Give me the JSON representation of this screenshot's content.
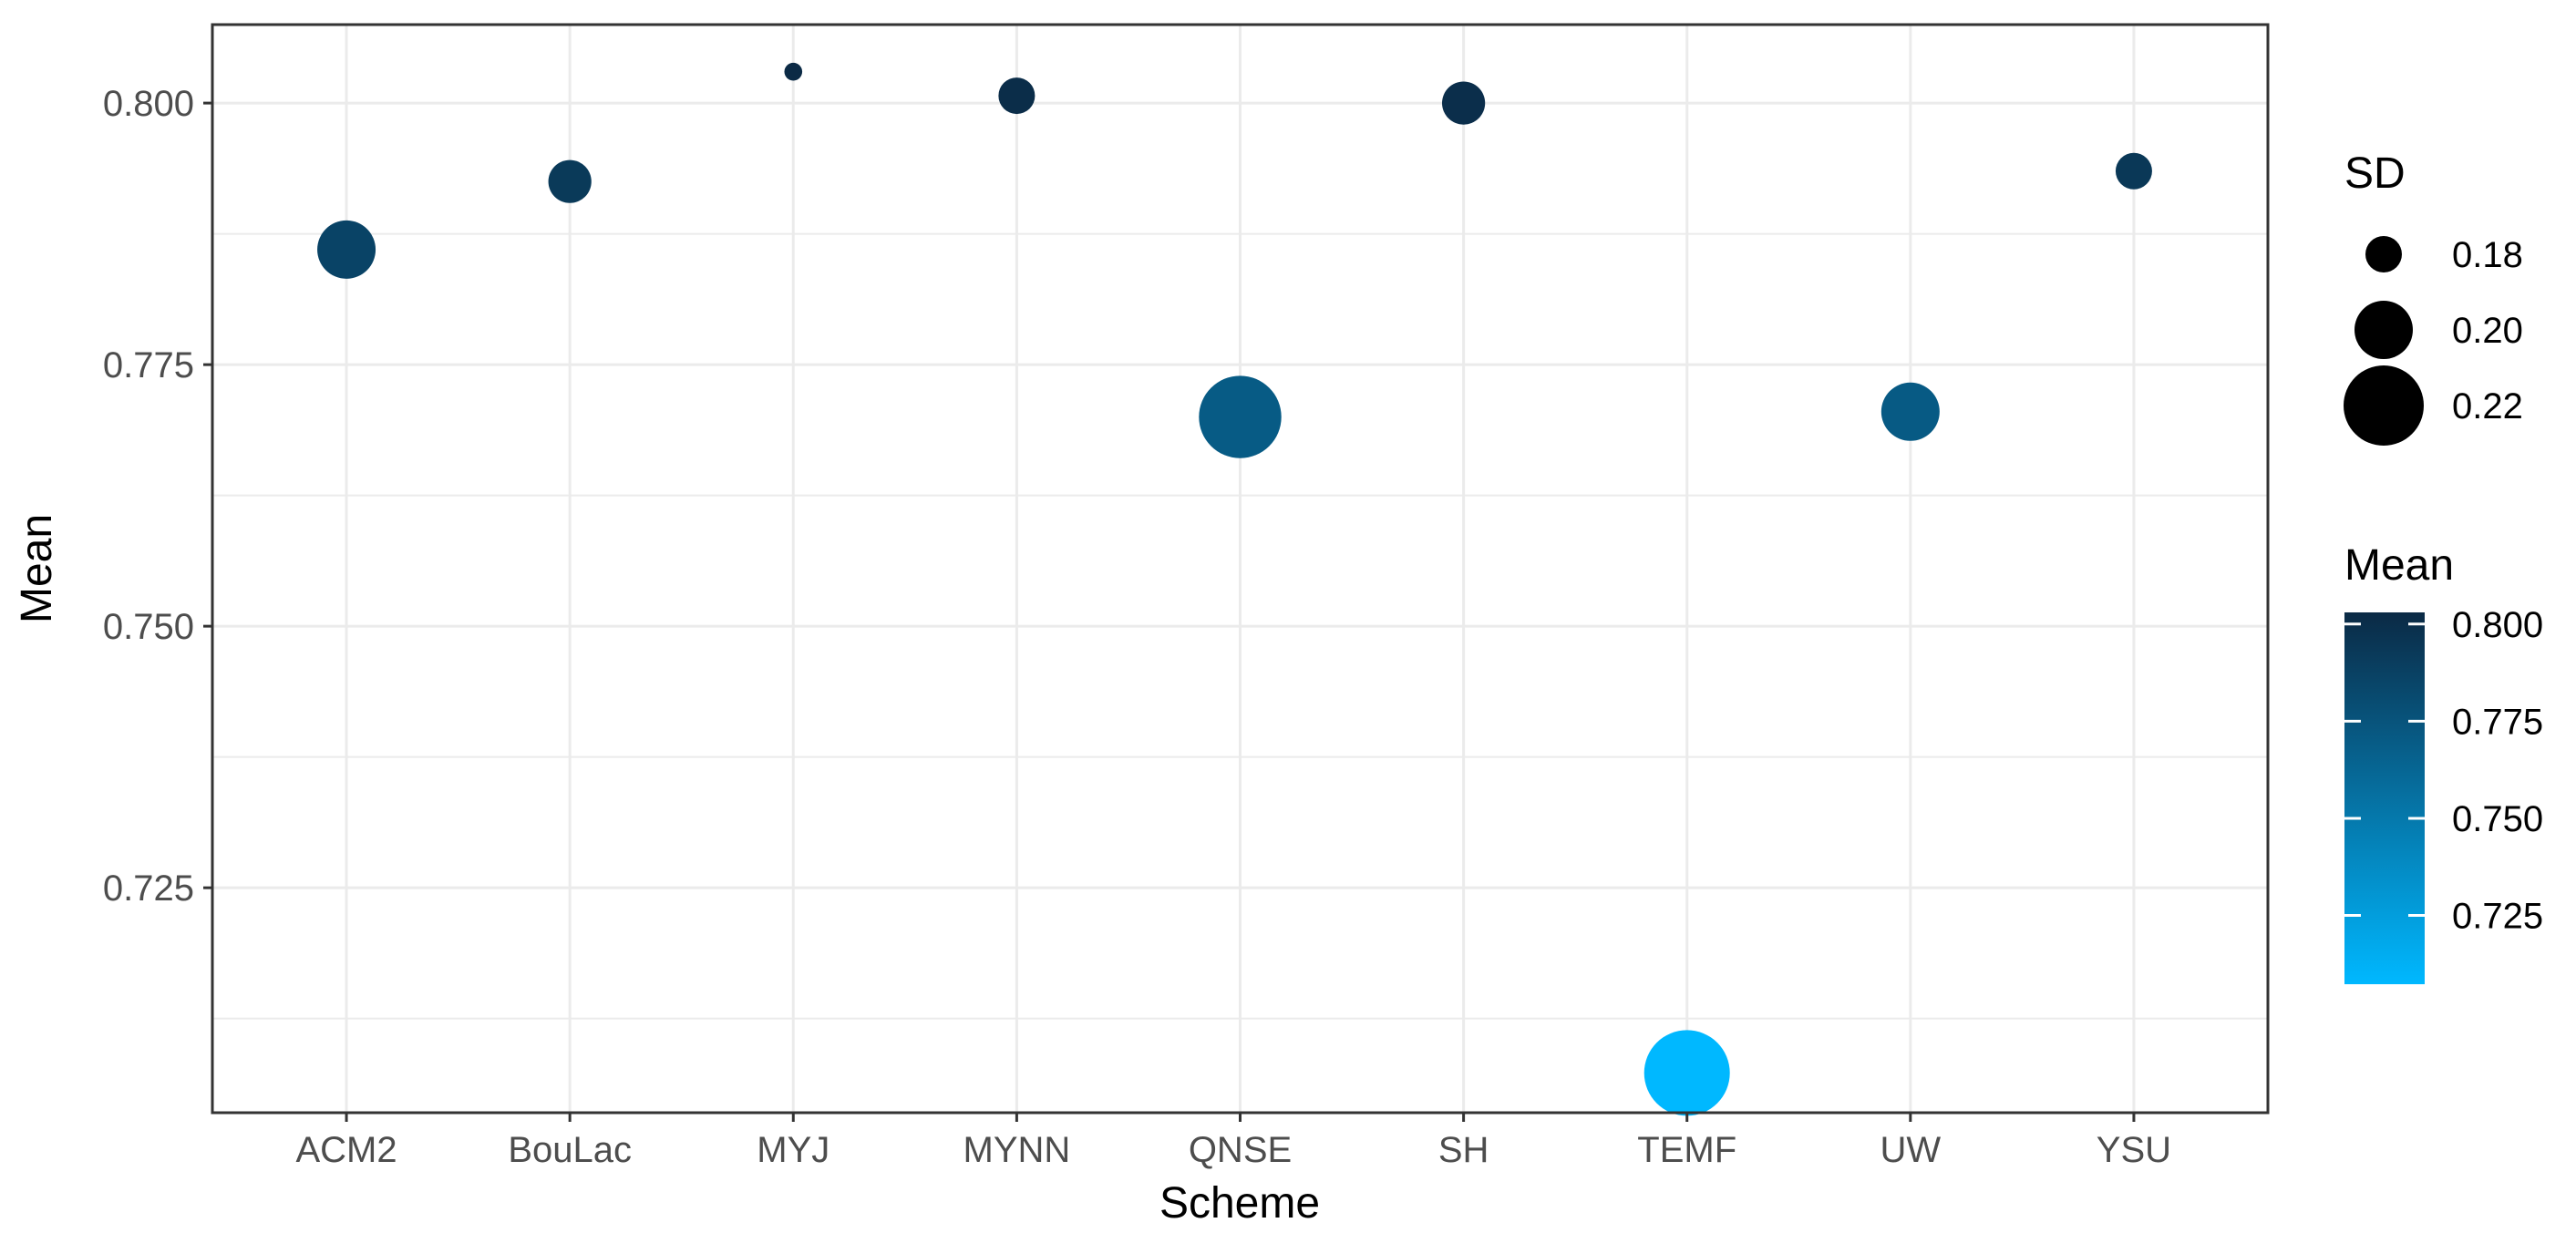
{
  "chart_data": {
    "type": "scatter",
    "title": "",
    "xlabel": "Scheme",
    "ylabel": "Mean",
    "categories": [
      "ACM2",
      "BouLac",
      "MYJ",
      "MYNN",
      "QNSE",
      "SH",
      "TEMF",
      "UW",
      "YSU"
    ],
    "points": [
      {
        "scheme": "ACM2",
        "mean": 0.786,
        "sd": 0.2
      },
      {
        "scheme": "BouLac",
        "mean": 0.7925,
        "sd": 0.186
      },
      {
        "scheme": "MYJ",
        "mean": 0.803,
        "sd": 0.163
      },
      {
        "scheme": "MYNN",
        "mean": 0.8007,
        "sd": 0.18
      },
      {
        "scheme": "QNSE",
        "mean": 0.77,
        "sd": 0.222
      },
      {
        "scheme": "SH",
        "mean": 0.8,
        "sd": 0.186
      },
      {
        "scheme": "TEMF",
        "mean": 0.7073,
        "sd": 0.225
      },
      {
        "scheme": "UW",
        "mean": 0.7705,
        "sd": 0.2
      },
      {
        "scheme": "YSU",
        "mean": 0.7935,
        "sd": 0.18
      }
    ],
    "ylim": [
      0.7035,
      0.8075
    ],
    "y_ticks": [
      0.725,
      0.75,
      0.775,
      0.8
    ],
    "y_tick_labels": [
      "0.725",
      "0.750",
      "0.775",
      "0.800"
    ],
    "grid": true,
    "legend_position": "right",
    "size_legend": {
      "title": "SD",
      "values": [
        0.18,
        0.2,
        0.22
      ],
      "labels": [
        "0.18",
        "0.20",
        "0.22"
      ]
    },
    "color_legend": {
      "title": "Mean",
      "values": [
        0.725,
        0.75,
        0.775,
        0.8
      ],
      "labels": [
        "0.725",
        "0.750",
        "0.775",
        "0.800"
      ],
      "low_color": "#00b8ff",
      "high_color": "#0b2a45"
    },
    "colors": {
      "panel_border": "#333333",
      "grid": "#ebebeb",
      "legend_point": "#000000"
    }
  }
}
